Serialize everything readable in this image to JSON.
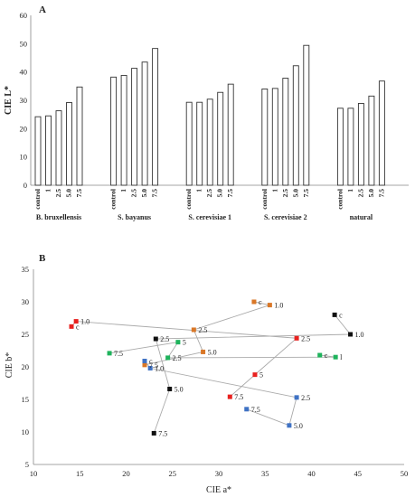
{
  "chart_data": [
    {
      "type": "bar",
      "panel_label": "A",
      "ylabel": "CIE L*",
      "ylim": [
        0,
        60
      ],
      "yticks": [
        0,
        10,
        20,
        30,
        40,
        50,
        60
      ],
      "grid": false,
      "bar_color": "#ffffff",
      "bar_edge_color": "#333333",
      "groups": [
        {
          "name": "B. bruxellensis",
          "categories": [
            "control",
            "1",
            "2.5",
            "5.0",
            "7.5"
          ],
          "values": [
            24.2,
            24.5,
            26.3,
            29.2,
            34.7
          ]
        },
        {
          "name": "S. bayanus",
          "categories": [
            "control",
            "1",
            "2.5",
            "5.0",
            "7.5"
          ],
          "values": [
            38.2,
            38.8,
            41.3,
            43.5,
            48.3
          ]
        },
        {
          "name": "S. cerevisiae 1",
          "categories": [
            "control",
            "1",
            "2.5",
            "5.0",
            "7.5"
          ],
          "values": [
            29.3,
            29.3,
            30.4,
            32.8,
            35.7
          ]
        },
        {
          "name": "S. cerevisiae 2",
          "categories": [
            "control",
            "1",
            "2.5",
            "5.0",
            "7.5"
          ],
          "values": [
            34.0,
            34.2,
            37.8,
            42.2,
            49.4
          ]
        },
        {
          "name": "natural",
          "categories": [
            "control",
            "1",
            "2.5",
            "5.0",
            "7.5"
          ],
          "values": [
            27.2,
            27.2,
            28.9,
            31.5,
            36.8
          ]
        }
      ]
    },
    {
      "type": "scatter",
      "panel_label": "B",
      "xlabel": "CIE a*",
      "ylabel": "CIE b*",
      "xlim": [
        10,
        50
      ],
      "ylim": [
        5,
        35
      ],
      "xticks": [
        10,
        15,
        20,
        25,
        30,
        35,
        40,
        45,
        50
      ],
      "yticks": [
        5,
        10,
        15,
        20,
        25,
        30,
        35
      ],
      "grid": false,
      "connector_color": "#aaaaaa",
      "series": [
        {
          "color": "#111111",
          "points": [
            {
              "label": "c",
              "x": 42.5,
              "y": 28.0
            },
            {
              "label": "1.0",
              "x": 44.2,
              "y": 25.0
            },
            {
              "label": "2.5",
              "x": 23.2,
              "y": 24.3
            },
            {
              "label": "5.0",
              "x": 24.7,
              "y": 16.6
            },
            {
              "label": "7.5",
              "x": 23.0,
              "y": 9.8
            }
          ]
        },
        {
          "color": "#d97727",
          "points": [
            {
              "label": "c",
              "x": 33.8,
              "y": 30.0
            },
            {
              "label": "1.0",
              "x": 35.5,
              "y": 29.5
            },
            {
              "label": "2.5",
              "x": 27.3,
              "y": 25.7
            },
            {
              "label": "5.0",
              "x": 28.3,
              "y": 22.3
            },
            {
              "label": "7.5",
              "x": 22.0,
              "y": 20.3
            }
          ]
        },
        {
          "color": "#e8211f",
          "points": [
            {
              "label": "c",
              "x": 14.1,
              "y": 26.2
            },
            {
              "label": "1.0",
              "x": 14.6,
              "y": 27.0
            },
            {
              "label": "2.5",
              "x": 38.4,
              "y": 24.4
            },
            {
              "label": "5",
              "x": 33.9,
              "y": 18.8
            },
            {
              "label": "7.5",
              "x": 31.2,
              "y": 15.4
            }
          ]
        },
        {
          "color": "#1fb35c",
          "points": [
            {
              "label": "c",
              "x": 40.9,
              "y": 21.8
            },
            {
              "label": "l",
              "x": 42.6,
              "y": 21.5
            },
            {
              "label": "2.5",
              "x": 24.5,
              "y": 21.4
            },
            {
              "label": "5",
              "x": 25.6,
              "y": 23.8
            },
            {
              "label": "7.5",
              "x": 18.2,
              "y": 22.1
            }
          ]
        },
        {
          "color": "#3f72c4",
          "points": [
            {
              "label": "c",
              "x": 22.0,
              "y": 20.9
            },
            {
              "label": "1.0",
              "x": 22.6,
              "y": 19.8
            },
            {
              "label": "2.5",
              "x": 38.4,
              "y": 15.3
            },
            {
              "label": "5.0",
              "x": 37.6,
              "y": 11.0
            },
            {
              "label": "7.5",
              "x": 33.0,
              "y": 13.5
            }
          ]
        }
      ]
    }
  ]
}
